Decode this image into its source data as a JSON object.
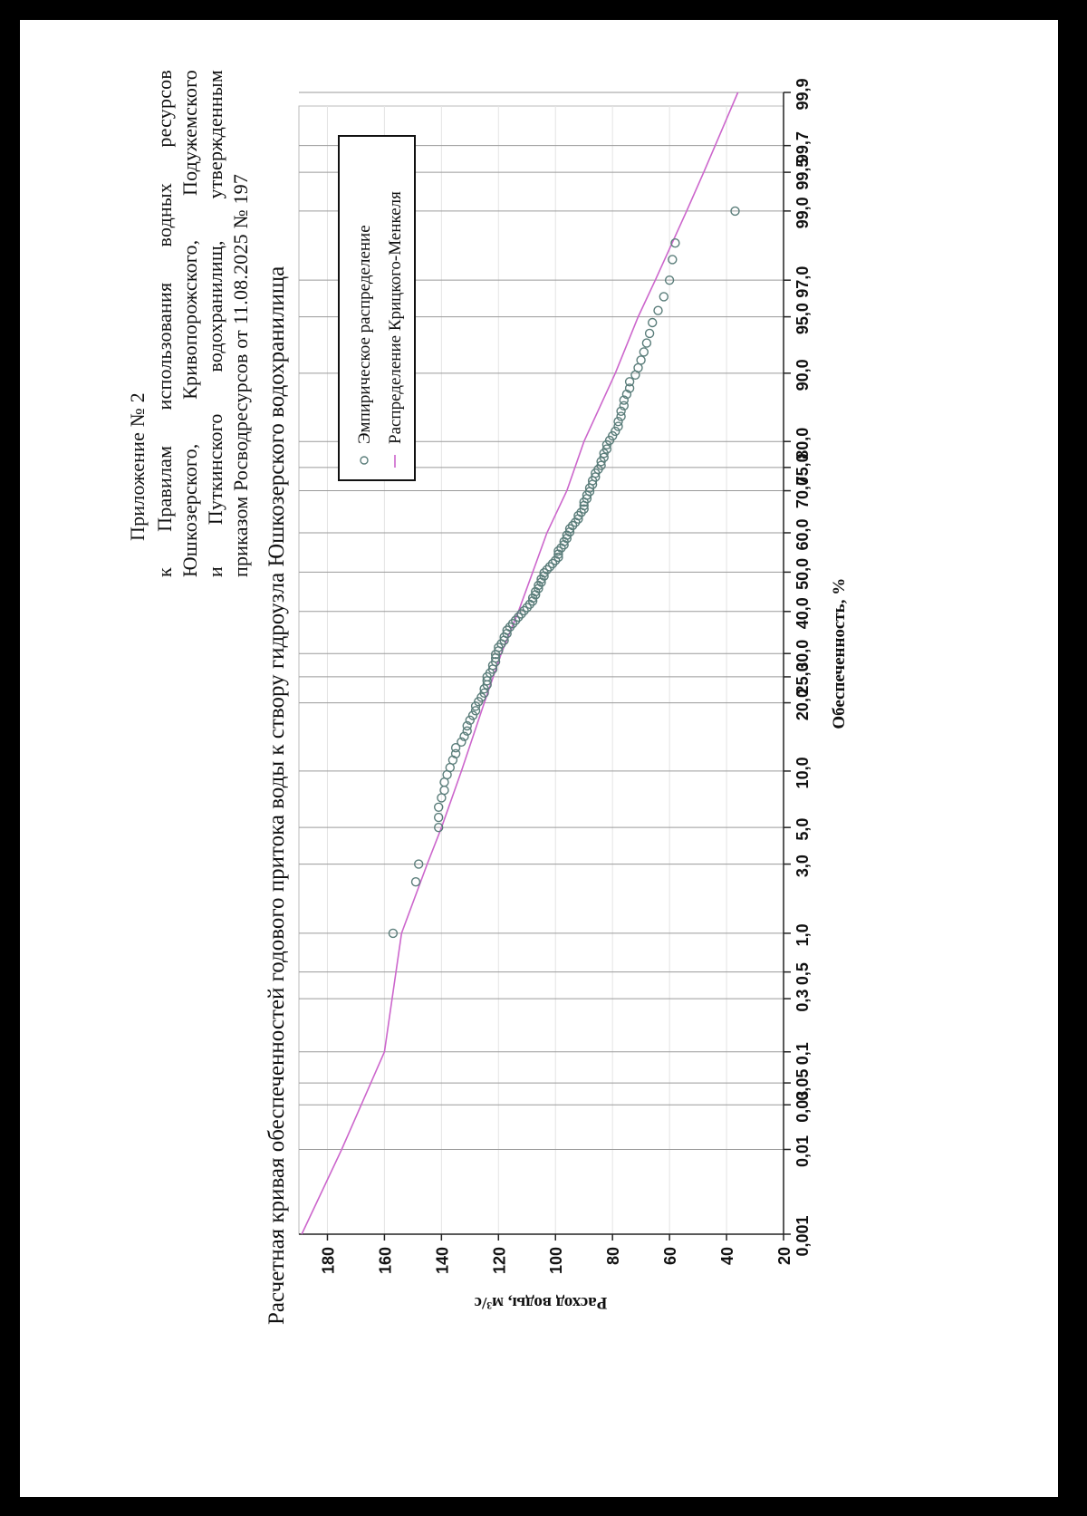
{
  "appendix": {
    "line1": "Приложение № 2",
    "line2_words": [
      "к",
      "Правилам",
      "использования",
      "водных",
      "ресурсов"
    ],
    "line3_words": [
      "Юшкозерского,",
      "Кривопорожского,",
      "Подужемского"
    ],
    "line4_words": [
      "и",
      "Путкинского",
      "водохранилищ,",
      "утвержденным"
    ],
    "line5": "приказом Росводресурсов от 11.08.2025 № 197"
  },
  "chart_data": {
    "type": "scatter",
    "title": "Расчетная кривая обеспеченностей годового притока воды к створу гидроузла Юшкозерского водохранилища",
    "xlabel": "Обеспеченность, %",
    "ylabel": "Расход воды, м³/с",
    "x_scale": "probability",
    "x_ticks": [
      "0.001",
      "0.01",
      "0.03",
      "0.05",
      "0.1",
      "0.3",
      "0.5",
      "1.0",
      "3.0",
      "5.0",
      "10.0",
      "20.0",
      "25.0",
      "30.0",
      "40.0",
      "50.0",
      "60.0",
      "70.0",
      "75.0",
      "80.0",
      "90.0",
      "95.0",
      "97.0",
      "99.0",
      "99.5",
      "99.7",
      "99.9"
    ],
    "y_ticks": [
      20,
      40,
      60,
      80,
      100,
      120,
      140,
      160,
      180
    ],
    "ylim": [
      20,
      190
    ],
    "grid": true,
    "legend_position": "top-right",
    "series": [
      {
        "name": "Эмпирическое распределение",
        "marker": "circle",
        "color": "#5a7d7a",
        "points": [
          [
            1.0,
            157
          ],
          [
            2.3,
            149
          ],
          [
            3.0,
            148
          ],
          [
            5.0,
            141
          ],
          [
            5.7,
            141
          ],
          [
            6.5,
            141
          ],
          [
            7.3,
            140
          ],
          [
            8.0,
            139
          ],
          [
            8.8,
            139
          ],
          [
            9.6,
            138
          ],
          [
            10.4,
            137
          ],
          [
            11.3,
            136
          ],
          [
            12.1,
            135
          ],
          [
            12.9,
            135
          ],
          [
            13.7,
            133
          ],
          [
            14.5,
            132
          ],
          [
            15.3,
            131
          ],
          [
            16.1,
            131
          ],
          [
            17.0,
            130
          ],
          [
            17.8,
            129
          ],
          [
            18.6,
            128
          ],
          [
            19.4,
            128
          ],
          [
            20.2,
            127
          ],
          [
            21.0,
            126
          ],
          [
            21.8,
            125
          ],
          [
            22.6,
            125
          ],
          [
            23.4,
            124
          ],
          [
            24.2,
            124
          ],
          [
            25.0,
            124
          ],
          [
            25.8,
            123
          ],
          [
            26.6,
            122
          ],
          [
            27.4,
            122
          ],
          [
            28.2,
            121
          ],
          [
            29.0,
            121
          ],
          [
            29.8,
            121
          ],
          [
            30.6,
            120
          ],
          [
            31.4,
            120
          ],
          [
            32.2,
            119
          ],
          [
            33.0,
            118
          ],
          [
            33.8,
            118
          ],
          [
            34.6,
            117
          ],
          [
            35.4,
            117
          ],
          [
            36.2,
            116
          ],
          [
            37.0,
            115
          ],
          [
            37.8,
            114
          ],
          [
            38.6,
            113
          ],
          [
            39.4,
            112
          ],
          [
            40.2,
            111
          ],
          [
            41.0,
            110
          ],
          [
            41.8,
            109
          ],
          [
            42.6,
            108
          ],
          [
            43.4,
            108
          ],
          [
            44.2,
            107
          ],
          [
            45.0,
            107
          ],
          [
            45.8,
            106
          ],
          [
            46.6,
            106
          ],
          [
            47.4,
            105
          ],
          [
            48.2,
            105
          ],
          [
            49.0,
            104
          ],
          [
            49.8,
            104
          ],
          [
            50.6,
            103
          ],
          [
            51.4,
            102
          ],
          [
            52.2,
            101
          ],
          [
            53.0,
            100
          ],
          [
            53.8,
            99
          ],
          [
            54.6,
            99
          ],
          [
            55.4,
            99
          ],
          [
            56.2,
            98
          ],
          [
            57.0,
            97
          ],
          [
            57.8,
            97
          ],
          [
            58.6,
            96
          ],
          [
            59.4,
            96
          ],
          [
            60.2,
            95
          ],
          [
            61.0,
            95
          ],
          [
            61.8,
            94
          ],
          [
            62.6,
            93
          ],
          [
            63.4,
            92
          ],
          [
            64.2,
            92
          ],
          [
            65.0,
            91
          ],
          [
            65.8,
            90
          ],
          [
            66.6,
            90
          ],
          [
            67.4,
            90
          ],
          [
            68.2,
            89
          ],
          [
            69.0,
            89
          ],
          [
            69.8,
            88
          ],
          [
            70.6,
            88
          ],
          [
            71.4,
            87
          ],
          [
            72.2,
            87
          ],
          [
            73.0,
            86
          ],
          [
            73.8,
            86
          ],
          [
            74.6,
            85
          ],
          [
            75.4,
            84
          ],
          [
            76.2,
            84
          ],
          [
            77.0,
            83
          ],
          [
            77.8,
            83
          ],
          [
            78.6,
            82
          ],
          [
            79.4,
            82
          ],
          [
            80.2,
            81
          ],
          [
            81.0,
            80
          ],
          [
            81.8,
            79
          ],
          [
            82.6,
            78
          ],
          [
            83.4,
            78
          ],
          [
            84.2,
            77
          ],
          [
            85.0,
            77
          ],
          [
            85.8,
            76
          ],
          [
            86.6,
            76
          ],
          [
            87.4,
            75
          ],
          [
            88.2,
            74
          ],
          [
            89.0,
            74
          ],
          [
            89.8,
            72
          ],
          [
            90.6,
            71
          ],
          [
            91.4,
            70
          ],
          [
            92.2,
            69
          ],
          [
            93.0,
            68
          ],
          [
            93.8,
            67
          ],
          [
            94.6,
            66
          ],
          [
            95.4,
            64
          ],
          [
            96.2,
            62
          ],
          [
            97.0,
            60
          ],
          [
            97.8,
            59
          ],
          [
            98.3,
            58
          ],
          [
            99.0,
            37
          ]
        ]
      },
      {
        "name": "Распределение Крицкого-Менкеля",
        "marker": "line",
        "color": "#cc66cc",
        "points": [
          [
            0.001,
            189
          ],
          [
            0.01,
            175
          ],
          [
            0.1,
            160
          ],
          [
            1.0,
            154
          ],
          [
            3.0,
            145
          ],
          [
            5.0,
            140
          ],
          [
            10.0,
            133
          ],
          [
            20.0,
            125
          ],
          [
            30.0,
            119
          ],
          [
            40.0,
            113
          ],
          [
            50.0,
            108
          ],
          [
            60.0,
            103
          ],
          [
            70.0,
            96
          ],
          [
            80.0,
            90
          ],
          [
            90.0,
            79
          ],
          [
            95.0,
            71
          ],
          [
            97.0,
            65
          ],
          [
            99.0,
            54
          ],
          [
            99.5,
            48
          ],
          [
            99.7,
            44
          ],
          [
            99.9,
            36
          ]
        ]
      }
    ]
  }
}
